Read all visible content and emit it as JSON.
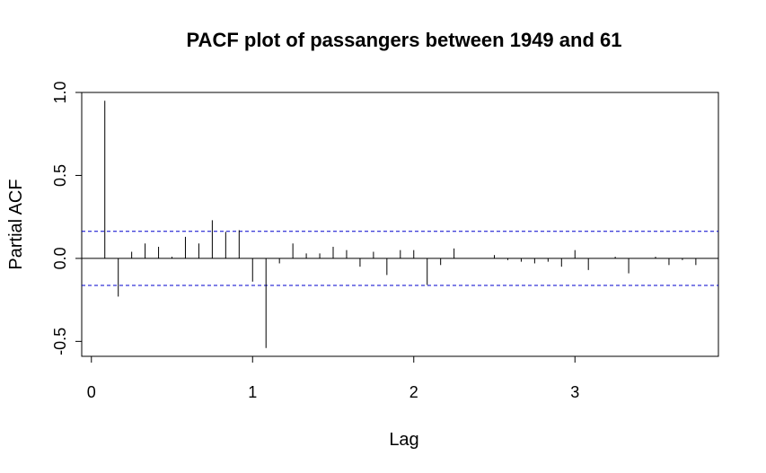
{
  "chart_data": {
    "type": "bar",
    "title": "PACF plot of passangers between 1949 and 61",
    "xlabel": "Lag",
    "ylabel": "Partial ACF",
    "xlim": [
      -0.06,
      3.89
    ],
    "ylim": [
      -0.59,
      1.0
    ],
    "x_ticks": [
      0,
      1,
      2,
      3
    ],
    "x_tick_labels": [
      "0",
      "1",
      "2",
      "3"
    ],
    "y_ticks": [
      -0.5,
      0.0,
      0.5,
      1.0
    ],
    "y_tick_labels": [
      "-0.5",
      "0.0",
      "0.5",
      "1.0"
    ],
    "confidence_bound": 0.163,
    "confidence_color": "#0000cc",
    "line_color": "#000000",
    "grid": false,
    "lags": [
      0.0833,
      0.1667,
      0.25,
      0.3333,
      0.4167,
      0.5,
      0.5833,
      0.6667,
      0.75,
      0.8333,
      0.9167,
      1.0,
      1.0833,
      1.1667,
      1.25,
      1.3333,
      1.4167,
      1.5,
      1.5833,
      1.6667,
      1.75,
      1.8333,
      1.9167,
      2.0,
      2.0833,
      2.1667,
      2.25,
      2.3333,
      2.4167,
      2.5,
      2.5833,
      2.6667,
      2.75,
      2.8333,
      2.9167,
      3.0,
      3.0833,
      3.1667,
      3.25,
      3.3333,
      3.4167,
      3.5,
      3.5833,
      3.6667,
      3.75
    ],
    "values": [
      0.95,
      -0.23,
      0.04,
      0.09,
      0.07,
      0.01,
      0.13,
      0.09,
      0.23,
      0.16,
      0.17,
      -0.14,
      -0.54,
      -0.03,
      0.09,
      0.03,
      0.03,
      0.07,
      0.05,
      -0.05,
      0.04,
      -0.1,
      0.05,
      0.05,
      -0.16,
      -0.04,
      0.06,
      0.0,
      0.0,
      0.02,
      -0.01,
      -0.02,
      -0.03,
      -0.02,
      -0.05,
      0.05,
      -0.07,
      0.0,
      0.01,
      -0.09,
      0.0,
      0.01,
      -0.04,
      -0.01,
      -0.04
    ]
  }
}
